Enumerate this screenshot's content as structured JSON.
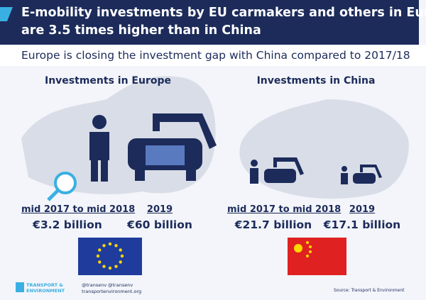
{
  "header": {
    "title_lines": [
      "E-mobility investments by EU carmakers and others in Europe",
      "are 3.5 times higher than in China"
    ],
    "subtitle": "Europe is closing the investment gap with China compared to 2017/18"
  },
  "panels": [
    {
      "heading": "Investments in Europe",
      "items": [
        {
          "period": "mid 2017 to mid 2018",
          "amount": "€3.2 billion"
        },
        {
          "period": "2019",
          "amount": "€60 billion"
        }
      ]
    },
    {
      "heading": "Investments in China",
      "items": [
        {
          "period": "mid 2017 to mid 2018",
          "amount": "€21.7 billion"
        },
        {
          "period": "2019",
          "amount": "€17.1 billion"
        }
      ]
    }
  ],
  "footer": {
    "logo_lines": [
      "TRANSPORT &",
      "ENVIRONMENT"
    ],
    "twitter": "@transenv",
    "facebook": "@transenv",
    "website": "transportenvironment.org",
    "source": "Source: Transport & Environment"
  }
}
